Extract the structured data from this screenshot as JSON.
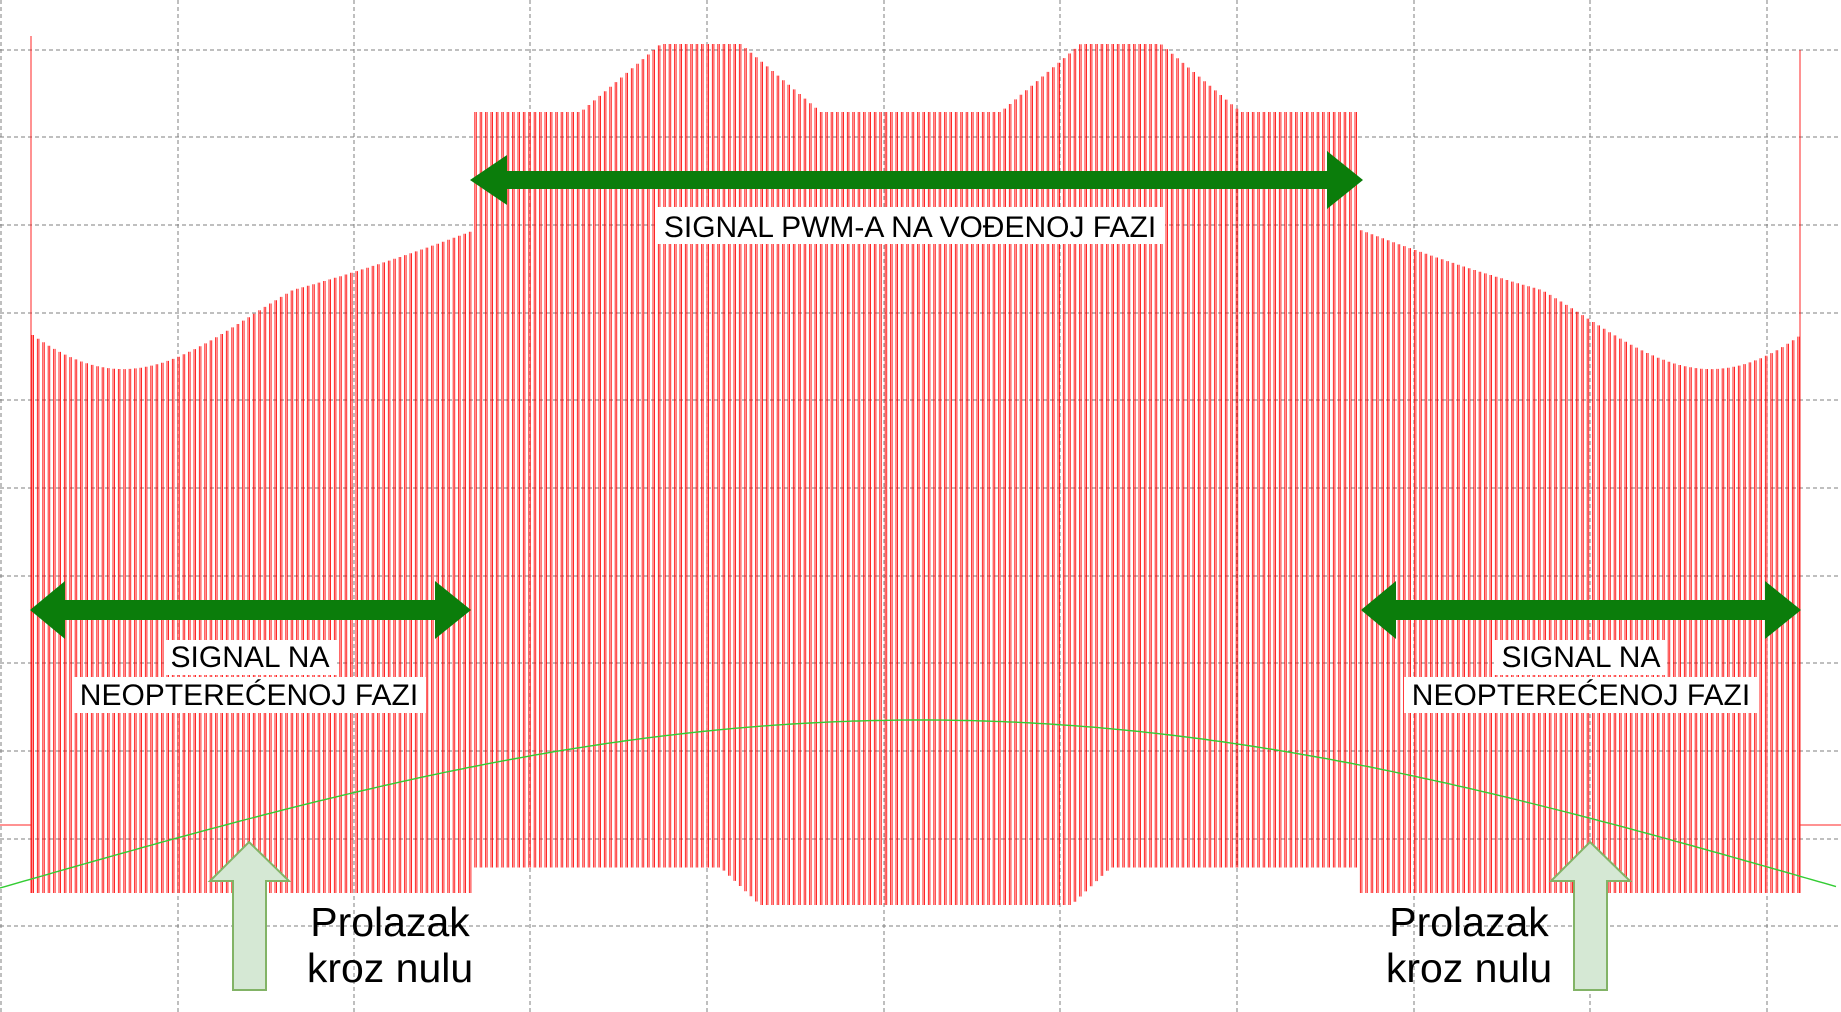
{
  "chart_data": {
    "type": "line",
    "title": "",
    "xlabel": "",
    "ylabel": "",
    "grid": true,
    "grid_divisions": {
      "x": 10,
      "y": 11
    },
    "series": [
      {
        "color": "#ff0000",
        "shape": "pwm switching bursts — floating-phase ramps at the ends, driven-phase PWM in the middle"
      },
      {
        "color": "#33cc33",
        "shape": "smooth half-wave crossing the ramps at the zero points"
      }
    ],
    "colors": {
      "pwm_trace": "#ff0000",
      "back_emf_trace": "#33cc33",
      "span_arrow": "#0b7d0b",
      "marker_arrow_fill": "#d5e8d4",
      "marker_arrow_stroke": "#82b366",
      "grid": "#7f7f7f"
    }
  },
  "annotations": {
    "driven": {
      "text": "SIGNAL PWM-A NA VOĐENOJ FAZI"
    },
    "floating_left": {
      "line1": "SIGNAL NA",
      "line2": "NEOPTEREĆENOJ FAZI"
    },
    "floating_right": {
      "line1": "SIGNAL NA",
      "line2": "NEOPTEREĆENOJ FAZI"
    },
    "zero_left": {
      "line1": "Prolazak",
      "line2": "kroz nulu"
    },
    "zero_right": {
      "line1": "Prolazak",
      "line2": "kroz nulu"
    }
  }
}
